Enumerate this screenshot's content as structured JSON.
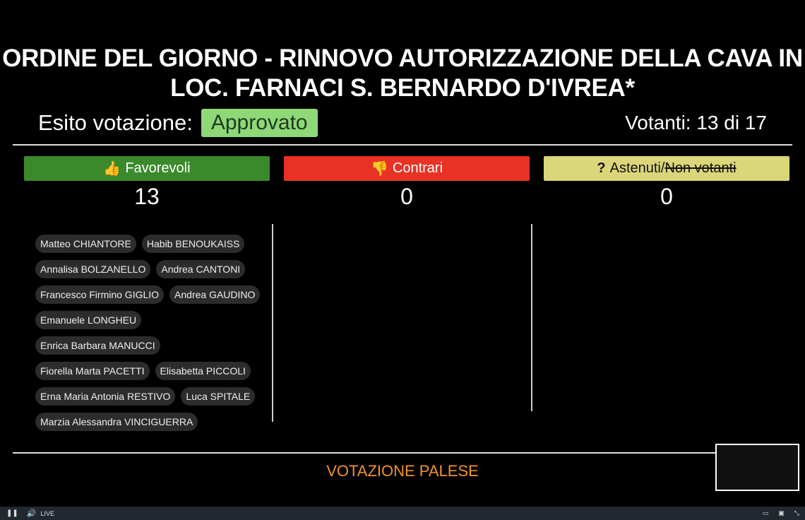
{
  "title": "ORDINE DEL GIORNO - RINNOVO AUTORIZZAZIONE DELLA CAVA IN LOC. FARNACI S. BERNARDO D'IVREA*",
  "esito": {
    "label": "Esito votazione:",
    "value": "Approvato",
    "color": "#8ed877"
  },
  "votanti": "Votanti: 13 di 17",
  "columns": [
    {
      "label": "Favorevoli",
      "count": "13",
      "icon": "thumbs-up-icon",
      "color": "#3a8a2c"
    },
    {
      "label": "Contrari",
      "count": "0",
      "icon": "thumbs-down-icon",
      "color": "#e83224"
    },
    {
      "label": "Astenuti/",
      "label_strike": "Non votanti",
      "count": "0",
      "icon": "question-icon",
      "color": "#dcd67a"
    }
  ],
  "favorevoli_names": [
    "Matteo CHIANTORE",
    "Habib BENOUKAISS",
    "Annalisa BOLZANELLO",
    "Andrea CANTONI",
    "Francesco Firmino GIGLIO",
    "Andrea GAUDINO",
    "Emanuele LONGHEU",
    "Enrica Barbara MANUCCI",
    "Fiorella Marta PACETTI",
    "Elisabetta PICCOLI",
    "Erna Maria Antonia RESTIVO",
    "Luca SPITALE",
    "Marzia Alessandra VINCIGUERRA"
  ],
  "footer": "VOTAZIONE PALESE",
  "player": {
    "live": "LIVE"
  }
}
